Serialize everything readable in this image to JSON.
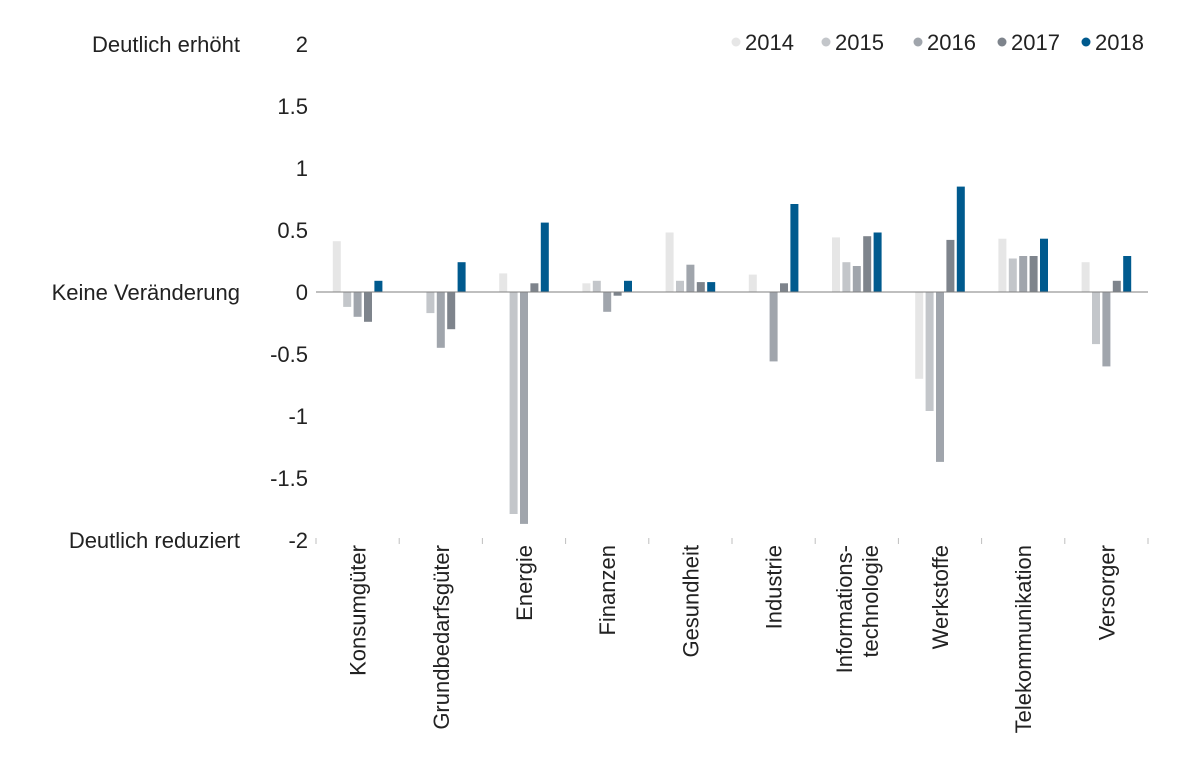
{
  "chart_data": {
    "type": "bar",
    "title": "",
    "xlabel": "",
    "ylabel": "",
    "ylim": [
      -2,
      2
    ],
    "yticks": [
      "2",
      "1.5",
      "1",
      "0.5",
      "0",
      "-0.5",
      "-1",
      "-1.5",
      "-2"
    ],
    "ytick_values": [
      2,
      1.5,
      1,
      0.5,
      0,
      -0.5,
      -1,
      -1.5,
      -2
    ],
    "y_annotations": [
      {
        "text": "Deutlich erhöht",
        "value": 2
      },
      {
        "text": "Keine Veränderung",
        "value": 0
      },
      {
        "text": "Deutlich reduziert",
        "value": -2
      }
    ],
    "categories": [
      [
        "Konsumgüter"
      ],
      [
        "Grundbedarfsgüter"
      ],
      [
        "Energie"
      ],
      [
        "Finanzen"
      ],
      [
        "Gesundheit"
      ],
      [
        "Industrie"
      ],
      [
        "Informations-",
        "technologie"
      ],
      [
        "Werkstoffe"
      ],
      [
        "Telekommunikation"
      ],
      [
        "Versorger"
      ]
    ],
    "legend_position": "top-right",
    "grid": false,
    "series": [
      {
        "name": "2014",
        "color": "#e6e6e6",
        "values": [
          0.41,
          0,
          0.15,
          0.07,
          0.48,
          0.14,
          0.44,
          -0.7,
          0.43,
          0.24
        ]
      },
      {
        "name": "2015",
        "color": "#c3c6ca",
        "values": [
          -0.12,
          -0.17,
          -1.79,
          0.09,
          0.09,
          0,
          0.24,
          -0.96,
          0.27,
          -0.42
        ]
      },
      {
        "name": "2016",
        "color": "#a0a5ac",
        "values": [
          -0.2,
          -0.45,
          -1.87,
          -0.16,
          0.22,
          -0.56,
          0.21,
          -1.37,
          0.29,
          -0.6
        ]
      },
      {
        "name": "2017",
        "color": "#7e848c",
        "values": [
          -0.24,
          -0.3,
          0.07,
          -0.03,
          0.08,
          0.07,
          0.45,
          0.42,
          0.29,
          0.09
        ]
      },
      {
        "name": "2018",
        "color": "#005a8e",
        "values": [
          0.09,
          0.24,
          0.56,
          0.09,
          0.08,
          0.71,
          0.48,
          0.85,
          0.43,
          0.29
        ]
      }
    ]
  }
}
